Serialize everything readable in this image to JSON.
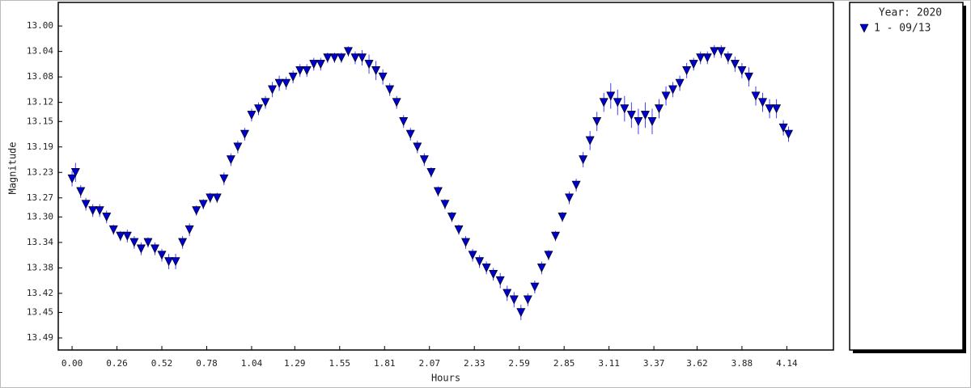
{
  "chart_data": {
    "type": "scatter",
    "x_label": "Hours",
    "y_label": "Magnitude",
    "legend_title": "Year: 2020",
    "legend": "right",
    "invert_y": true,
    "xlim": [
      -0.08,
      4.41
    ],
    "ylim": [
      12.963,
      13.509
    ],
    "xticks": [
      {
        "value": 0,
        "label": "0.00"
      },
      0.26,
      0.52,
      0.78,
      1.04,
      1.29,
      1.55,
      1.81,
      2.07,
      2.33,
      2.59,
      2.85,
      3.11,
      3.37,
      3.62,
      3.88,
      4.14
    ],
    "yticks": [
      {
        "value": 13,
        "label": "13.00"
      },
      13.04,
      13.08,
      13.12,
      13.15,
      13.19,
      13.23,
      13.27,
      {
        "value": 13.3,
        "label": "13.30"
      },
      13.34,
      13.38,
      13.42,
      13.45,
      13.49
    ],
    "series": [
      {
        "name": "1 - 09/13",
        "color": "#0000cc",
        "x": [
          0.0,
          0.02,
          0.05,
          0.08,
          0.12,
          0.16,
          0.2,
          0.24,
          0.28,
          0.32,
          0.36,
          0.4,
          0.44,
          0.48,
          0.52,
          0.56,
          0.6,
          0.64,
          0.68,
          0.72,
          0.76,
          0.8,
          0.84,
          0.88,
          0.92,
          0.96,
          1.0,
          1.04,
          1.08,
          1.12,
          1.16,
          1.2,
          1.24,
          1.28,
          1.32,
          1.36,
          1.4,
          1.44,
          1.48,
          1.52,
          1.56,
          1.6,
          1.64,
          1.68,
          1.72,
          1.76,
          1.8,
          1.84,
          1.88,
          1.92,
          1.96,
          2.0,
          2.04,
          2.08,
          2.12,
          2.16,
          2.2,
          2.24,
          2.28,
          2.32,
          2.36,
          2.4,
          2.44,
          2.48,
          2.52,
          2.56,
          2.6,
          2.64,
          2.68,
          2.72,
          2.76,
          2.8,
          2.84,
          2.88,
          2.92,
          2.96,
          3.0,
          3.04,
          3.08,
          3.12,
          3.16,
          3.2,
          3.24,
          3.28,
          3.32,
          3.36,
          3.4,
          3.44,
          3.48,
          3.52,
          3.56,
          3.6,
          3.64,
          3.68,
          3.72,
          3.76,
          3.8,
          3.84,
          3.88,
          3.92,
          3.96,
          4.0,
          4.04,
          4.08,
          4.12,
          4.15
        ],
        "values": [
          13.24,
          13.23,
          13.26,
          13.28,
          13.29,
          13.29,
          13.3,
          13.32,
          13.33,
          13.33,
          13.34,
          13.35,
          13.34,
          13.35,
          13.36,
          13.37,
          13.37,
          13.34,
          13.32,
          13.29,
          13.28,
          13.27,
          13.27,
          13.24,
          13.21,
          13.19,
          13.17,
          13.14,
          13.13,
          13.12,
          13.1,
          13.09,
          13.09,
          13.08,
          13.07,
          13.07,
          13.06,
          13.06,
          13.05,
          13.05,
          13.05,
          13.04,
          13.05,
          13.05,
          13.06,
          13.07,
          13.08,
          13.1,
          13.12,
          13.15,
          13.17,
          13.19,
          13.21,
          13.23,
          13.26,
          13.28,
          13.3,
          13.32,
          13.34,
          13.36,
          13.37,
          13.38,
          13.39,
          13.4,
          13.42,
          13.43,
          13.45,
          13.43,
          13.41,
          13.38,
          13.36,
          13.33,
          13.3,
          13.27,
          13.25,
          13.21,
          13.18,
          13.15,
          13.12,
          13.11,
          13.12,
          13.13,
          13.14,
          13.15,
          13.14,
          13.15,
          13.13,
          13.11,
          13.1,
          13.09,
          13.07,
          13.06,
          13.05,
          13.05,
          13.04,
          13.04,
          13.05,
          13.06,
          13.07,
          13.08,
          13.11,
          13.12,
          13.13,
          13.13,
          13.16,
          13.17
        ],
        "errors": [
          0.012,
          0.015,
          0.01,
          0.01,
          0.01,
          0.01,
          0.01,
          0.008,
          0.008,
          0.01,
          0.01,
          0.01,
          0.008,
          0.01,
          0.01,
          0.012,
          0.012,
          0.01,
          0.01,
          0.008,
          0.008,
          0.008,
          0.008,
          0.01,
          0.01,
          0.01,
          0.01,
          0.01,
          0.01,
          0.01,
          0.012,
          0.012,
          0.01,
          0.01,
          0.01,
          0.01,
          0.01,
          0.01,
          0.008,
          0.008,
          0.008,
          0.008,
          0.01,
          0.012,
          0.015,
          0.015,
          0.012,
          0.01,
          0.01,
          0.01,
          0.01,
          0.01,
          0.01,
          0.008,
          0.008,
          0.008,
          0.008,
          0.008,
          0.01,
          0.01,
          0.01,
          0.01,
          0.01,
          0.012,
          0.012,
          0.012,
          0.012,
          0.01,
          0.01,
          0.01,
          0.008,
          0.008,
          0.008,
          0.01,
          0.01,
          0.012,
          0.015,
          0.015,
          0.015,
          0.02,
          0.02,
          0.02,
          0.02,
          0.02,
          0.02,
          0.02,
          0.015,
          0.015,
          0.012,
          0.012,
          0.012,
          0.01,
          0.01,
          0.01,
          0.01,
          0.01,
          0.01,
          0.012,
          0.012,
          0.015,
          0.015,
          0.015,
          0.015,
          0.015,
          0.012,
          0.012
        ]
      }
    ]
  }
}
